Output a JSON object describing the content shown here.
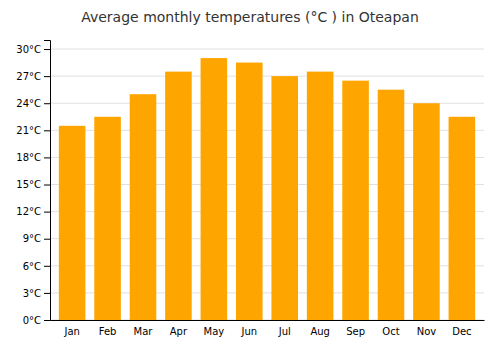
{
  "chart_data": {
    "type": "bar",
    "title": "Average monthly temperatures (°C ) in Oteapan",
    "categories": [
      "Jan",
      "Feb",
      "Mar",
      "Apr",
      "May",
      "Jun",
      "Jul",
      "Aug",
      "Sep",
      "Oct",
      "Nov",
      "Dec"
    ],
    "values": [
      21.5,
      22.5,
      25.0,
      27.5,
      29.0,
      28.5,
      27.0,
      27.5,
      26.5,
      25.5,
      24.0,
      22.5
    ],
    "color": "#FFA500",
    "ylim": [
      0,
      31
    ],
    "yticks": [
      {
        "value": 0,
        "label": "0°C"
      },
      {
        "value": 3,
        "label": "3°C"
      },
      {
        "value": 6,
        "label": "6°C"
      },
      {
        "value": 9,
        "label": "9°C"
      },
      {
        "value": 12,
        "label": "12°C"
      },
      {
        "value": 15,
        "label": "15°C"
      },
      {
        "value": 18,
        "label": "18°C"
      },
      {
        "value": 21,
        "label": "21°C"
      },
      {
        "value": 24,
        "label": "24°C"
      },
      {
        "value": 27,
        "label": "27°C"
      },
      {
        "value": 30,
        "label": "30°C"
      }
    ],
    "grid": true
  }
}
